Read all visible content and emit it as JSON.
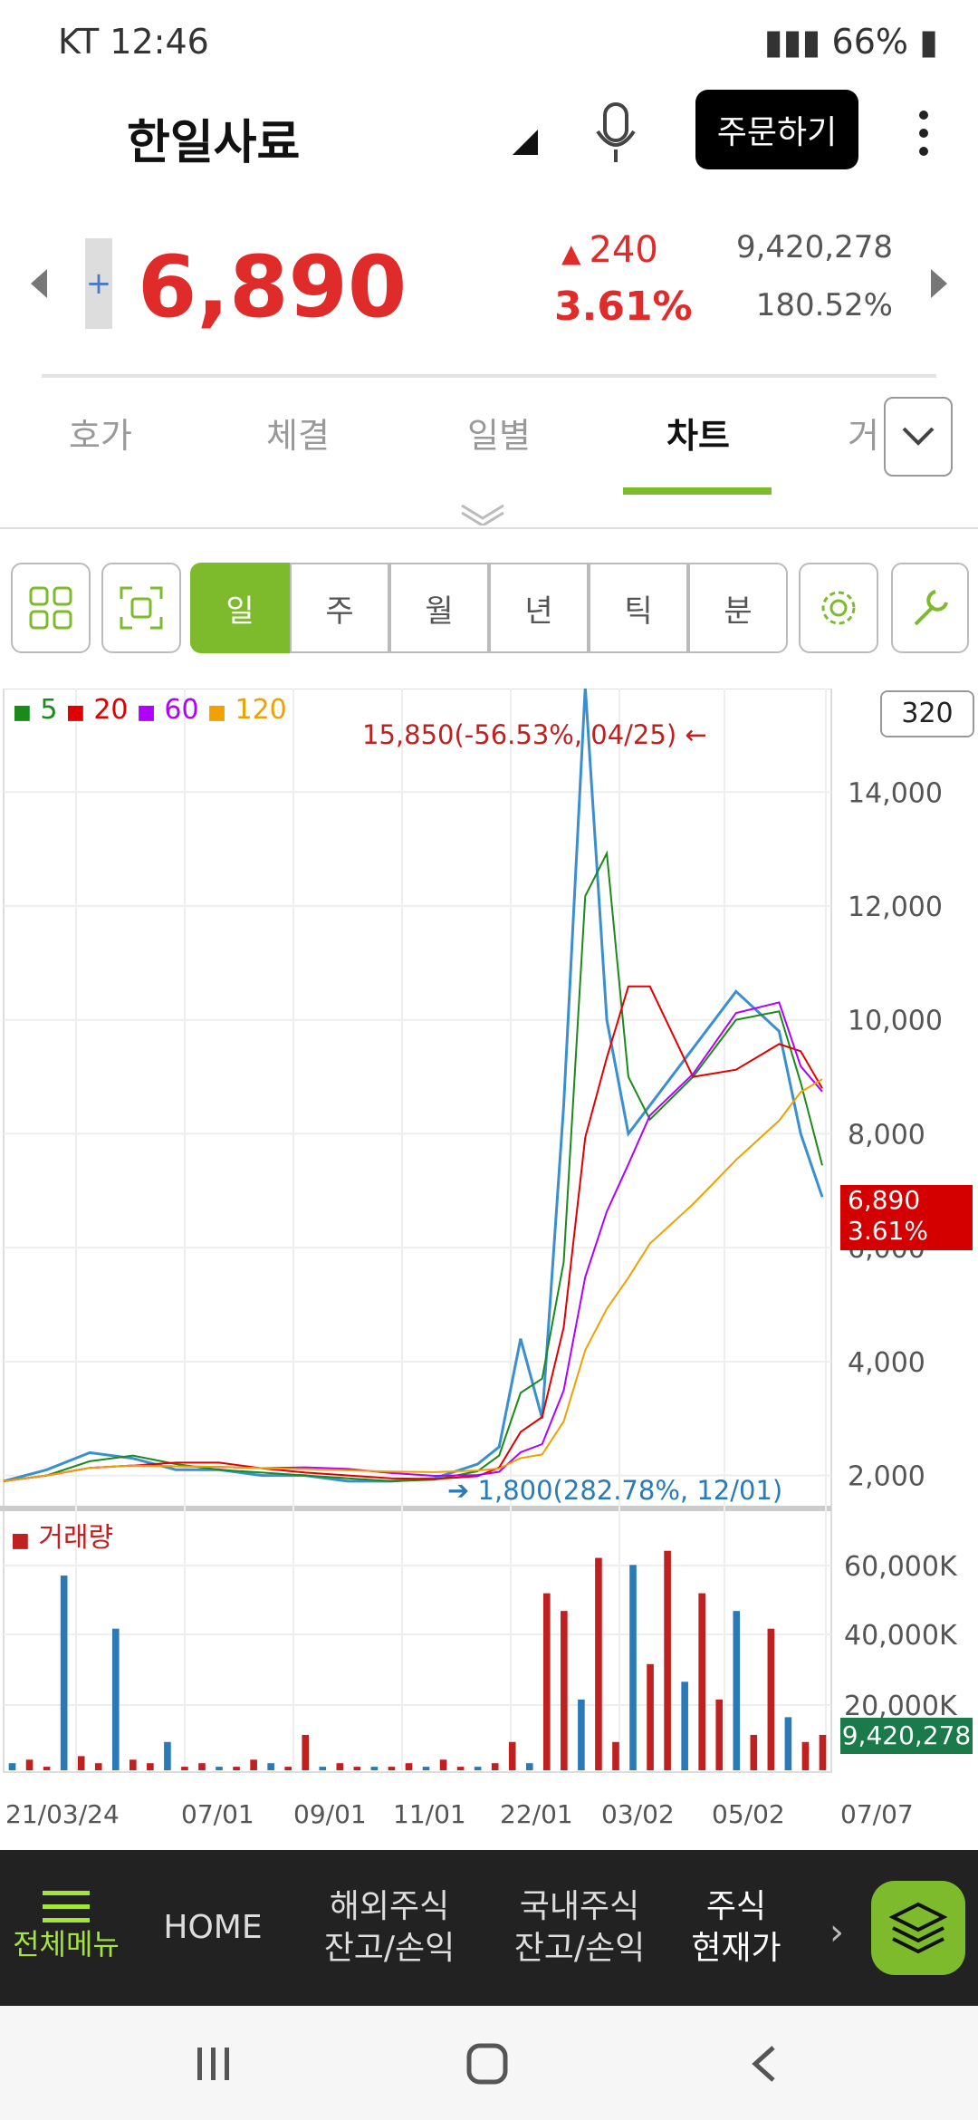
{
  "status_bar": {
    "carrier": "KT",
    "time": "12:46",
    "battery": "66%"
  },
  "header": {
    "stock_name": "한일사료",
    "order_button": "주문하기"
  },
  "quote": {
    "price": "6,890",
    "change": "240",
    "change_pct": "3.61%",
    "volume": "9,420,278",
    "volume_ratio": "180.52%"
  },
  "tabs": [
    {
      "label": "호가"
    },
    {
      "label": "체결"
    },
    {
      "label": "일별"
    },
    {
      "label": "차트"
    },
    {
      "label": "거"
    }
  ],
  "toolbar": {
    "periods": [
      "일",
      "주",
      "월",
      "년",
      "틱",
      "분"
    ]
  },
  "chart": {
    "ma_legend": [
      {
        "label": "5",
        "color": "#1a8a1a"
      },
      {
        "label": "20",
        "color": "#e00000"
      },
      {
        "label": "60",
        "color": "#b000ff"
      },
      {
        "label": "120",
        "color": "#f0a000"
      }
    ],
    "count_box": "320",
    "high_annotation": "15,850(-56.53%, 04/25)",
    "low_annotation": "1,800(282.78%, 12/01)",
    "current_tag_price": "6,890",
    "current_tag_pct": "3.61%",
    "volume_label": "거래량",
    "volume_tag": "9,420,278"
  },
  "chart_data": {
    "type": "line",
    "price_axis": {
      "ticks": [
        "14,000",
        "12,000",
        "10,000",
        "8,000",
        "6,000",
        "4,000",
        "2,000"
      ],
      "ylim": [
        1500,
        15500
      ]
    },
    "volume_axis": {
      "ticks": [
        "60,000K",
        "40,000K",
        "20,000K"
      ]
    },
    "x_ticks": [
      "21/03/24",
      "07/01",
      "09/01",
      "11/01",
      "22/01",
      "03/02",
      "05/02",
      "07/07"
    ],
    "series": [
      {
        "name": "price",
        "x": [
          0,
          10,
          20,
          30,
          40,
          50,
          60,
          70,
          80,
          90,
          100,
          110,
          115,
          120,
          125,
          130,
          135,
          140,
          145,
          150,
          160,
          170,
          180,
          185,
          190
        ],
        "values": [
          1900,
          2100,
          2400,
          2300,
          2100,
          2100,
          2000,
          2000,
          1900,
          1900,
          1950,
          2200,
          2500,
          4400,
          3000,
          8500,
          15850,
          10000,
          8000,
          8500,
          9500,
          10500,
          9800,
          8000,
          6890
        ]
      }
    ]
  },
  "bottom_nav": [
    {
      "label": "전체메뉴"
    },
    {
      "label": "HOME"
    },
    {
      "label": "해외주식\n잔고/손익"
    },
    {
      "label": "국내주식\n잔고/손익"
    },
    {
      "label": "주식\n현재가"
    }
  ]
}
